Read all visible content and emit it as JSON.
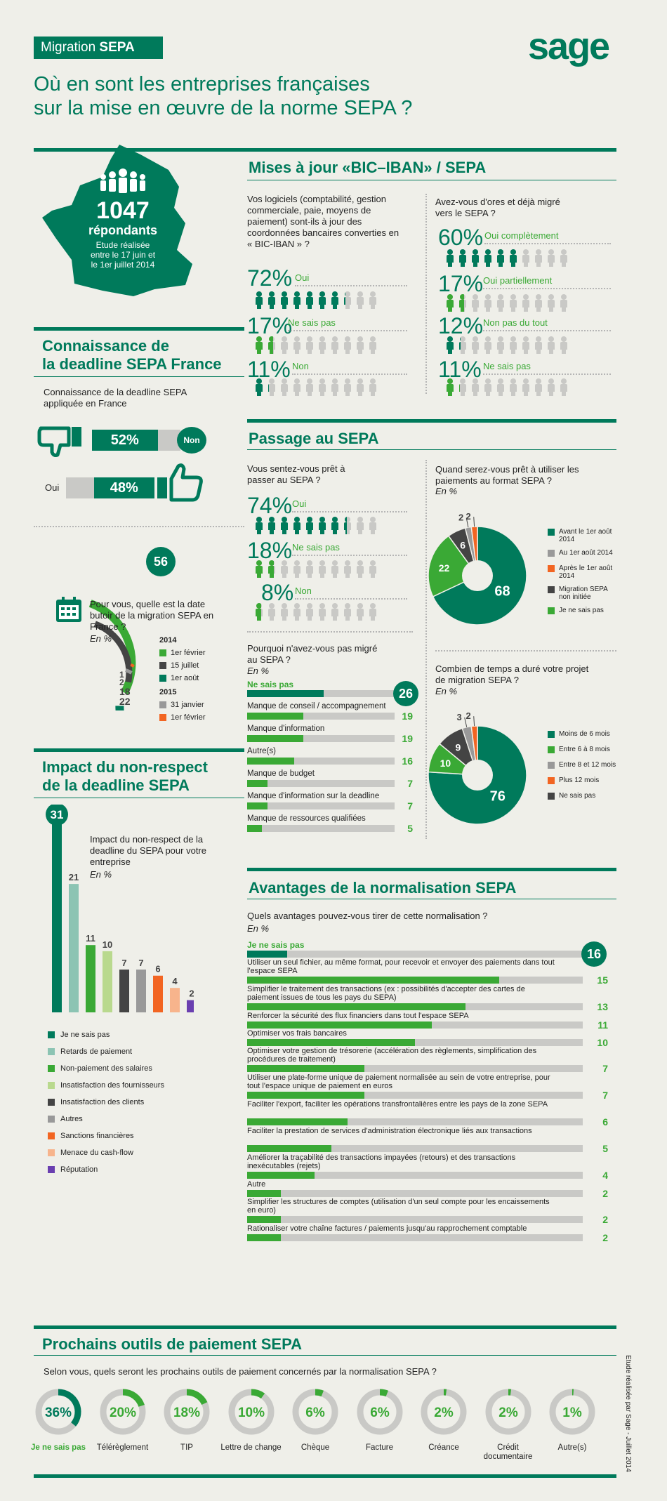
{
  "header": {
    "badge_prefix": "Migration ",
    "badge_bold": "SEPA",
    "title_line1": "Où en sont les entreprises françaises",
    "title_line2": "sur la mise en œuvre de la norme SEPA ?",
    "logo": "sage"
  },
  "respondents": {
    "count": "1047",
    "label": "répondants",
    "line1": "Etude réalisée",
    "line2": "entre le 17 juin et",
    "line3": "le 1er juillet 2014"
  },
  "bic_iban": {
    "title": "Mises à jour «BIC–IBAN» / SEPA",
    "q1": "Vos logiciels (comptabilité, gestion commerciale, paie, moyens de paiement) sont-ils à jour des coordonnées bancaires converties en « BIC-IBAN » ?",
    "q1_items": [
      {
        "pct": "72",
        "label": "Oui",
        "value": 72
      },
      {
        "pct": "17",
        "label": "Ne sais pas",
        "value": 17
      },
      {
        "pct": "11",
        "label": "Non",
        "value": 11
      }
    ],
    "q2": "Avez-vous d'ores et déjà migré vers le SEPA ?",
    "q2_items": [
      {
        "pct": "60",
        "label": "Oui complètement",
        "value": 60
      },
      {
        "pct": "17",
        "label": "Oui partiellement",
        "value": 17
      },
      {
        "pct": "12",
        "label": "Non pas du tout",
        "value": 12
      },
      {
        "pct": "11",
        "label": "Ne sais pas",
        "value": 11
      }
    ]
  },
  "deadline_knowledge": {
    "title_line1": "Connaissance de",
    "title_line2": "la deadline SEPA France",
    "question": "Connaissance de la deadline SEPA appliquée en France",
    "non_pct": "52%",
    "non_label": "Non",
    "non_value": 52,
    "oui_pct": "48%",
    "oui_label": "Oui",
    "oui_value": 48
  },
  "deadline_date": {
    "question": "Pour vous, quelle est la date butoir de la migration SEPA en France ?",
    "en": "En %",
    "top_value": "56",
    "year1": "2014",
    "year2": "2015",
    "legend": [
      {
        "label": "1er février",
        "color": "#3aa935"
      },
      {
        "label": "15 juillet",
        "color": "#444444"
      },
      {
        "label": "1er août",
        "color": "#007a5b"
      },
      {
        "label": "31 janvier",
        "color": "#999999"
      },
      {
        "label": "1er février",
        "color": "#f26522"
      }
    ],
    "arc_values": [
      "1",
      "2",
      "18",
      "22"
    ]
  },
  "impact": {
    "title_line1": "Impact du non-respect",
    "title_line2": "de la deadline SEPA",
    "question": "Impact du non-respect de la deadline du SEPA pour votre entreprise",
    "en": "En %",
    "legend": [
      "Je ne sais pas",
      "Retards de paiement",
      "Non-paiement des salaires",
      "Insatisfaction des fournisseurs",
      "Insatisfaction des clients",
      "Autres",
      "Sanctions financières",
      "Menace du cash-flow",
      "Réputation"
    ]
  },
  "passage": {
    "title": "Passage au SEPA",
    "q1": "Vous sentez-vous prêt à passer au SEPA ?",
    "q1_items": [
      {
        "pct": "74",
        "label": "Oui",
        "value": 74
      },
      {
        "pct": "18",
        "label": "Ne sais pas",
        "value": 18
      },
      {
        "pct": "8",
        "label": "Non",
        "value": 8
      }
    ],
    "q2": "Quand serez-vous prêt à utiliser les paiements au format SEPA ?",
    "q2_en": "En %",
    "q2_legend": [
      "Avant le 1er août 2014",
      "Au 1er août 2014",
      "Après le 1er août 2014",
      "Migration SEPA non initiée",
      "Je ne sais pas"
    ],
    "q3": "Pourquoi n'avez-vous pas migré au SEPA ?",
    "q3_en": "En %",
    "q4": "Combien de temps a duré votre projet de migration SEPA ?",
    "q4_en": "En %",
    "q4_legend": [
      "Moins de 6 mois",
      "Entre 6 à 8 mois",
      "Entre 8 et 12 mois",
      "Plus 12 mois",
      "Ne sais pas"
    ]
  },
  "avantages": {
    "title": "Avantages de la normalisation SEPA",
    "question": "Quels avantages pouvez-vous tirer de cette normalisation ?",
    "en": "En %"
  },
  "prochains": {
    "title": "Prochains outils de paiement SEPA",
    "question": "Selon vous, quels seront les prochains outils de paiement concernés par la normalisation SEPA ?"
  },
  "footer": {
    "side_note": "Etude réalisée par Sage - Juillet 2014"
  },
  "chart_data": [
    {
      "type": "bar",
      "title": "Impact du non-respect de la deadline du SEPA pour votre entreprise",
      "categories": [
        "Je ne sais pas",
        "Retards de paiement",
        "Non-paiement des salaires",
        "Insatisfaction des fournisseurs",
        "Insatisfaction des clients",
        "Autres",
        "Sanctions financières",
        "Menace du cash-flow",
        "Réputation"
      ],
      "values": [
        31,
        21,
        11,
        10,
        7,
        7,
        6,
        4,
        2
      ],
      "colors": [
        "#007a5b",
        "#8cc4b3",
        "#3aa935",
        "#b9d98e",
        "#444444",
        "#999999",
        "#f26522",
        "#f7b48c",
        "#6a3fb0"
      ]
    },
    {
      "type": "pie",
      "title": "Quand serez-vous prêt à utiliser les paiements au format SEPA ?",
      "categories": [
        "Avant le 1er août 2014",
        "Je ne sais pas",
        "Migration SEPA non initiée",
        "Au 1er août 2014",
        "Après le 1er août 2014"
      ],
      "values": [
        68,
        22,
        6,
        2,
        2
      ],
      "colors": [
        "#007a5b",
        "#3aa935",
        "#444444",
        "#999999",
        "#f26522"
      ]
    },
    {
      "type": "pie",
      "title": "Combien de temps a duré votre projet de migration SEPA ?",
      "categories": [
        "Moins de 6 mois",
        "Entre 6 à 8 mois",
        "Ne sais pas",
        "Entre 8 et 12 mois",
        "Plus 12 mois"
      ],
      "values": [
        76,
        10,
        9,
        3,
        2
      ],
      "colors": [
        "#007a5b",
        "#3aa935",
        "#444444",
        "#999999",
        "#f26522"
      ]
    },
    {
      "type": "bar",
      "title": "Pourquoi n'avez-vous pas migré au SEPA ?",
      "categories": [
        "Ne sais pas",
        "Manque de conseil / accompagnement",
        "Manque d'information",
        "Autre(s)",
        "Manque de budget",
        "Manque d'information sur la deadline",
        "Manque de ressources qualifiées"
      ],
      "values": [
        26,
        19,
        19,
        16,
        7,
        7,
        5
      ]
    },
    {
      "type": "bar",
      "title": "Quels avantages pouvez-vous tirer de cette normalisation ?",
      "categories": [
        "Je ne sais pas",
        "Utiliser un seul fichier, au même format, pour recevoir et envoyer des paiements dans tout l'espace SEPA",
        "Simplifier le traitement des transactions (ex : possibilités d'accepter des cartes de paiement issues de tous les pays du SEPA)",
        "Renforcer la sécurité des flux financiers dans tout l'espace SEPA",
        "Optimiser vos frais bancaires",
        "Optimiser votre gestion de trésorerie (accélération des règlements, simplification des procédures de traitement)",
        "Utiliser une plate-forme unique de paiement normalisée au sein de votre entreprise, pour tout l'espace unique de paiement en euros",
        "Faciliter l'export, faciliter les opérations transfrontalières entre les pays de la zone SEPA",
        "Faciliter la prestation de services d'administration électronique liés aux transactions",
        "Améliorer la traçabilité des transactions impayées (retours) et des transactions inexécutables (rejets)",
        "Autre",
        "Simplifier les structures de comptes (utilisation d'un seul compte pour les encaissements en euro)",
        "Rationaliser votre chaîne factures / paiements jusqu'au rapprochement comptable"
      ],
      "values": [
        16,
        15,
        13,
        11,
        10,
        7,
        7,
        6,
        5,
        4,
        2,
        2,
        2
      ]
    },
    {
      "type": "pie",
      "title": "Selon vous, quels seront les prochains outils de paiement concernés par la normalisation SEPA ?",
      "categories": [
        "Je ne sais pas",
        "Télérèglement",
        "TIP",
        "Lettre de change",
        "Chèque",
        "Facture",
        "Créance",
        "Crédit documentaire",
        "Autre(s)"
      ],
      "values": [
        36,
        20,
        18,
        10,
        6,
        6,
        2,
        2,
        1
      ],
      "labels": [
        "36%",
        "20%",
        "18%",
        "10%",
        "6%",
        "6%",
        "2%",
        "2%",
        "1%"
      ]
    },
    {
      "type": "pie",
      "title": "Pour vous, quelle est la date butoir de la migration SEPA en France ?",
      "categories": [
        "2014 1er août",
        "2014 1er février",
        "2014 15 juillet",
        "2015 31 janvier",
        "2015 1er février"
      ],
      "values": [
        56,
        22,
        18,
        2,
        1
      ]
    }
  ]
}
